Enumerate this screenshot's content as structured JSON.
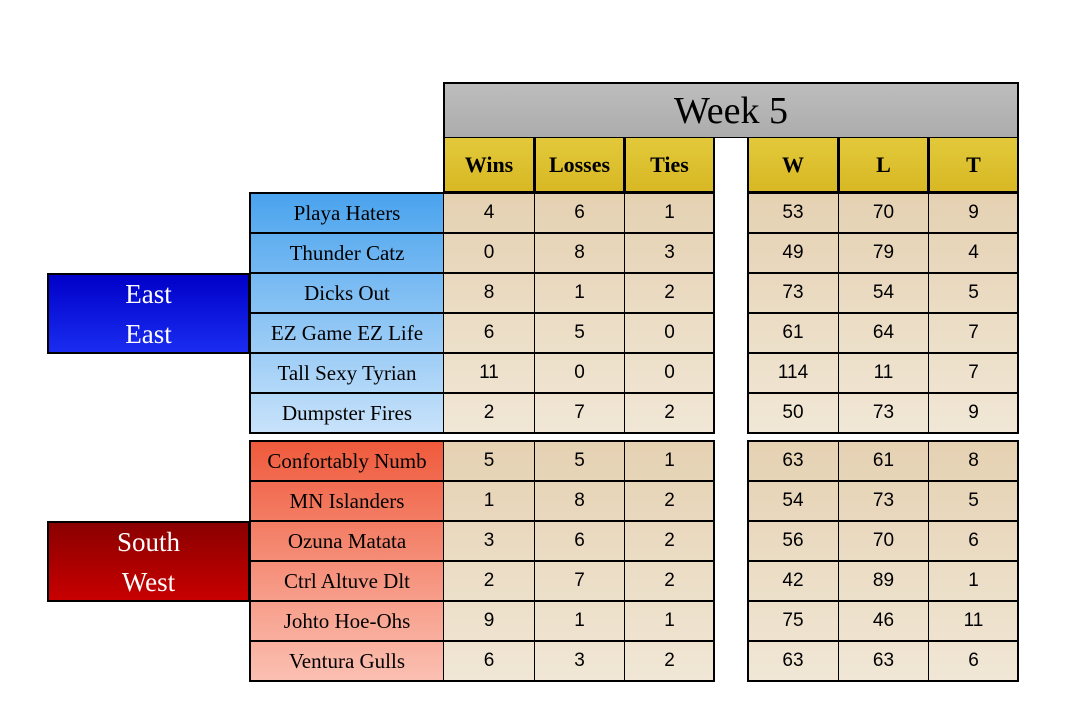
{
  "week": {
    "label": "Week",
    "number": "5"
  },
  "columns": {
    "season": [
      "Wins",
      "Losses",
      "Ties"
    ],
    "totals": [
      "W",
      "L",
      "T"
    ]
  },
  "divisions": [
    {
      "name_lines": [
        "East",
        "East"
      ],
      "teams": [
        {
          "name": "Playa Haters",
          "wins": "4",
          "losses": "6",
          "ties": "1",
          "w": "53",
          "l": "70",
          "t": "9"
        },
        {
          "name": "Thunder Catz",
          "wins": "0",
          "losses": "8",
          "ties": "3",
          "w": "49",
          "l": "79",
          "t": "4"
        },
        {
          "name": "Dicks Out",
          "wins": "8",
          "losses": "1",
          "ties": "2",
          "w": "73",
          "l": "54",
          "t": "5"
        },
        {
          "name": "EZ Game EZ Life",
          "wins": "6",
          "losses": "5",
          "ties": "0",
          "w": "61",
          "l": "64",
          "t": "7"
        },
        {
          "name": "Tall Sexy Tyrian",
          "wins": "11",
          "losses": "0",
          "ties": "0",
          "w": "114",
          "l": "11",
          "t": "7"
        },
        {
          "name": "Dumpster Fires",
          "wins": "2",
          "losses": "7",
          "ties": "2",
          "w": "50",
          "l": "73",
          "t": "9"
        }
      ]
    },
    {
      "name_lines": [
        "South",
        "West"
      ],
      "teams": [
        {
          "name": "Confortably Numb",
          "wins": "5",
          "losses": "5",
          "ties": "1",
          "w": "63",
          "l": "61",
          "t": "8"
        },
        {
          "name": "MN Islanders",
          "wins": "1",
          "losses": "8",
          "ties": "2",
          "w": "54",
          "l": "73",
          "t": "5"
        },
        {
          "name": "Ozuna Matata",
          "wins": "3",
          "losses": "6",
          "ties": "2",
          "w": "56",
          "l": "70",
          "t": "6"
        },
        {
          "name": "Ctrl Altuve Dlt",
          "wins": "2",
          "losses": "7",
          "ties": "2",
          "w": "42",
          "l": "89",
          "t": "1"
        },
        {
          "name": "Johto Hoe-Ohs",
          "wins": "9",
          "losses": "1",
          "ties": "1",
          "w": "75",
          "l": "46",
          "t": "11"
        },
        {
          "name": "Ventura Gulls",
          "wins": "6",
          "losses": "3",
          "ties": "2",
          "w": "63",
          "l": "63",
          "t": "6"
        }
      ]
    }
  ],
  "colors": {
    "header_gray": "#b0b0b0",
    "header_yellow": "#dcc02c",
    "cell_tan": "#ead9bd",
    "east_blue": "#0a14e0",
    "south_red": "#b40000"
  }
}
